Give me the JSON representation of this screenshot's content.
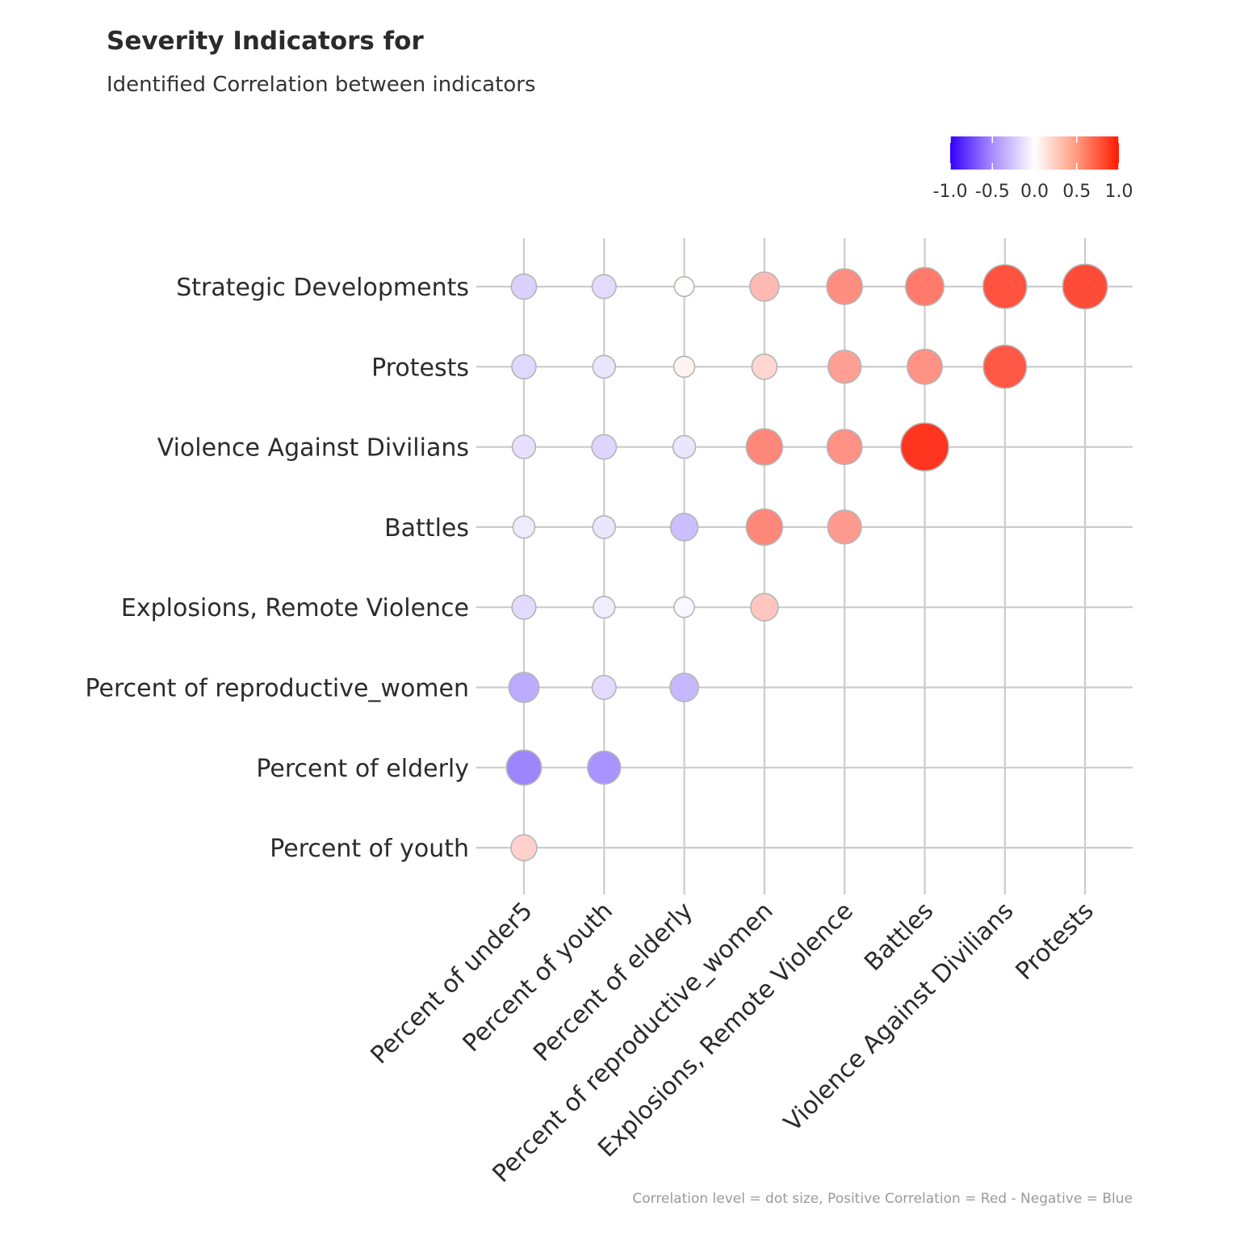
{
  "header": {
    "title": "Severity Indicators for",
    "subtitle": "Identified Correlation between indicators"
  },
  "caption": "Correlation level = dot size, Positive Correlation  = Red - Negative = Blue",
  "colors": {
    "negative": "#3300ff",
    "neutral": "#ffffff",
    "positive": "#ff1a00",
    "grid": "#cccccc",
    "dot_border": "#b5b5b5"
  },
  "chart_data": {
    "type": "scatter",
    "variant": "correlation-matrix-dotplot",
    "title": "Severity Indicators for",
    "subtitle": "Identified Correlation between indicators",
    "caption": "Correlation level = dot size, Positive Correlation  = Red - Negative = Blue",
    "x_categories": [
      "Percent of under5",
      "Percent of youth",
      "Percent of elderly",
      "Percent of reproductive_women",
      "Explosions, Remote Violence",
      "Battles",
      "Violence Against Divilians",
      "Protests"
    ],
    "y_categories": [
      "Strategic Developments",
      "Protests",
      "Violence Against Divilians",
      "Battles",
      "Explosions, Remote Violence",
      "Percent of reproductive_women",
      "Percent of elderly",
      "Percent of youth"
    ],
    "legend": {
      "type": "colorbar",
      "range": [
        -1,
        1
      ],
      "ticks": [
        "-1.0",
        "-0.5",
        "0.0",
        "0.5",
        "1.0"
      ],
      "placement": "top-right"
    },
    "grid": true,
    "points": [
      {
        "x": "Percent of under5",
        "y": "Strategic Developments",
        "r": -0.18
      },
      {
        "x": "Percent of youth",
        "y": "Strategic Developments",
        "r": -0.14
      },
      {
        "x": "Percent of elderly",
        "y": "Strategic Developments",
        "r": 0.01
      },
      {
        "x": "Percent of reproductive_women",
        "y": "Strategic Developments",
        "r": 0.3
      },
      {
        "x": "Explosions, Remote Violence",
        "y": "Strategic Developments",
        "r": 0.5
      },
      {
        "x": "Battles",
        "y": "Strategic Developments",
        "r": 0.58
      },
      {
        "x": "Violence Against Divilians",
        "y": "Strategic Developments",
        "r": 0.75
      },
      {
        "x": "Protests",
        "y": "Strategic Developments",
        "r": 0.78
      },
      {
        "x": "Percent of under5",
        "y": "Protests",
        "r": -0.15
      },
      {
        "x": "Percent of youth",
        "y": "Protests",
        "r": -0.1
      },
      {
        "x": "Percent of elderly",
        "y": "Protests",
        "r": 0.05
      },
      {
        "x": "Percent of reproductive_women",
        "y": "Protests",
        "r": 0.18
      },
      {
        "x": "Explosions, Remote Violence",
        "y": "Protests",
        "r": 0.42
      },
      {
        "x": "Battles",
        "y": "Protests",
        "r": 0.48
      },
      {
        "x": "Violence Against Divilians",
        "y": "Protests",
        "r": 0.73
      },
      {
        "x": "Percent of under5",
        "y": "Violence Against Divilians",
        "r": -0.12
      },
      {
        "x": "Percent of youth",
        "y": "Violence Against Divilians",
        "r": -0.16
      },
      {
        "x": "Percent of elderly",
        "y": "Violence Against Divilians",
        "r": -0.1
      },
      {
        "x": "Percent of reproductive_women",
        "y": "Violence Against Divilians",
        "r": 0.52
      },
      {
        "x": "Explosions, Remote Violence",
        "y": "Violence Against Divilians",
        "r": 0.48
      },
      {
        "x": "Battles",
        "y": "Violence Against Divilians",
        "r": 0.88
      },
      {
        "x": "Percent of under5",
        "y": "Battles",
        "r": -0.08
      },
      {
        "x": "Percent of youth",
        "y": "Battles",
        "r": -0.1
      },
      {
        "x": "Percent of elderly",
        "y": "Battles",
        "r": -0.25
      },
      {
        "x": "Percent of reproductive_women",
        "y": "Battles",
        "r": 0.52
      },
      {
        "x": "Explosions, Remote Violence",
        "y": "Battles",
        "r": 0.44
      },
      {
        "x": "Percent of under5",
        "y": "Explosions, Remote Violence",
        "r": -0.14
      },
      {
        "x": "Percent of youth",
        "y": "Explosions, Remote Violence",
        "r": -0.07
      },
      {
        "x": "Percent of elderly",
        "y": "Explosions, Remote Violence",
        "r": -0.03
      },
      {
        "x": "Percent of reproductive_women",
        "y": "Explosions, Remote Violence",
        "r": 0.25
      },
      {
        "x": "Percent of under5",
        "y": "Percent of reproductive_women",
        "r": -0.33
      },
      {
        "x": "Percent of youth",
        "y": "Percent of reproductive_women",
        "r": -0.14
      },
      {
        "x": "Percent of elderly",
        "y": "Percent of reproductive_women",
        "r": -0.28
      },
      {
        "x": "Percent of under5",
        "y": "Percent of elderly",
        "r": -0.48
      },
      {
        "x": "Percent of youth",
        "y": "Percent of elderly",
        "r": -0.42
      },
      {
        "x": "Percent of under5",
        "y": "Percent of youth",
        "r": 0.2
      }
    ]
  }
}
